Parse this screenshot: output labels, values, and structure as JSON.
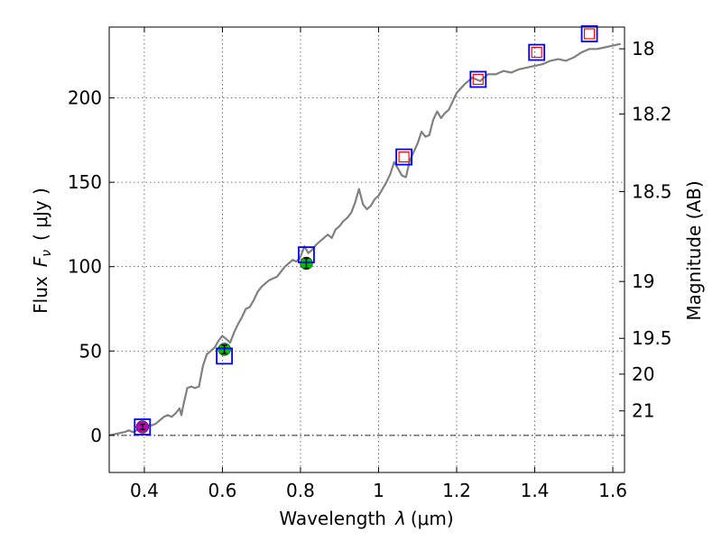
{
  "chart_data": {
    "type": "line",
    "xlabel_prefix": "Wavelength",
    "xlabel_symbol": "λ",
    "xlabel_unit": "(μm)",
    "ylabel_prefix": "Flux",
    "ylabel_symbol": "F",
    "ylabel_sub": "ν",
    "ylabel_unit": "( μJy )",
    "y2label": "Magnitude (AB)",
    "xlim": [
      0.31,
      1.63
    ],
    "ylim": [
      -22,
      242
    ],
    "x_ticks": [
      0.4,
      0.6,
      0.8,
      1.0,
      1.2,
      1.4,
      1.6
    ],
    "x_tick_labels": [
      "0.4",
      "0.6",
      "0.8",
      "1",
      "1.2",
      "1.4",
      "1.6"
    ],
    "y_ticks": [
      0,
      50,
      100,
      150,
      200
    ],
    "y_tick_labels": [
      "0",
      "50",
      "100",
      "150",
      "200"
    ],
    "mag_ticks": [
      {
        "label": "18",
        "flux": 229.1
      },
      {
        "label": "18.2",
        "flux": 190.5
      },
      {
        "label": "18.5",
        "flux": 144.5
      },
      {
        "label": "19",
        "flux": 91.2
      },
      {
        "label": "19.5",
        "flux": 57.5
      },
      {
        "label": "20",
        "flux": 36.3
      },
      {
        "label": "21",
        "flux": 14.5
      }
    ],
    "zero_line": 0,
    "grid": true,
    "series": [
      {
        "name": "model-spectrum",
        "color": "#808080",
        "x": [
          0.31,
          0.33,
          0.35,
          0.36,
          0.37,
          0.38,
          0.39,
          0.4,
          0.41,
          0.42,
          0.43,
          0.44,
          0.45,
          0.46,
          0.47,
          0.48,
          0.49,
          0.495,
          0.5,
          0.51,
          0.52,
          0.53,
          0.54,
          0.55,
          0.56,
          0.57,
          0.58,
          0.59,
          0.6,
          0.61,
          0.62,
          0.63,
          0.64,
          0.65,
          0.66,
          0.67,
          0.68,
          0.69,
          0.7,
          0.71,
          0.72,
          0.73,
          0.74,
          0.75,
          0.76,
          0.77,
          0.78,
          0.79,
          0.8,
          0.81,
          0.82,
          0.83,
          0.84,
          0.85,
          0.86,
          0.87,
          0.88,
          0.89,
          0.9,
          0.91,
          0.92,
          0.93,
          0.94,
          0.95,
          0.96,
          0.97,
          0.98,
          0.99,
          1.0,
          1.01,
          1.02,
          1.03,
          1.04,
          1.05,
          1.06,
          1.07,
          1.08,
          1.09,
          1.1,
          1.11,
          1.12,
          1.13,
          1.14,
          1.15,
          1.16,
          1.17,
          1.18,
          1.19,
          1.2,
          1.22,
          1.24,
          1.26,
          1.28,
          1.3,
          1.32,
          1.34,
          1.36,
          1.38,
          1.4,
          1.42,
          1.44,
          1.46,
          1.48,
          1.5,
          1.52,
          1.54,
          1.56,
          1.58,
          1.6,
          1.62
        ],
        "y": [
          0,
          1,
          2,
          3,
          2,
          3,
          4,
          5,
          6,
          6,
          7,
          9,
          11,
          12,
          11,
          13,
          16,
          12,
          18,
          28,
          29,
          28,
          29,
          41,
          48,
          50,
          52,
          56,
          59,
          57,
          55,
          61,
          66,
          70,
          75,
          76,
          80,
          85,
          88,
          90,
          92,
          93,
          94,
          97,
          100,
          102,
          104,
          103,
          106,
          112,
          108,
          110,
          113,
          115,
          117,
          119,
          117,
          122,
          124,
          127,
          129,
          132,
          138,
          146,
          137,
          134,
          136,
          140,
          142,
          146,
          150,
          155,
          162,
          158,
          154,
          153,
          163,
          168,
          173,
          180,
          177,
          178,
          187,
          192,
          188,
          191,
          193,
          198,
          203,
          208,
          212,
          210,
          214,
          214,
          216,
          215,
          217,
          218,
          219,
          220,
          222,
          223,
          222,
          224,
          227,
          229,
          229,
          230,
          231,
          232
        ]
      }
    ],
    "points": [
      {
        "name": "violet-filter",
        "x": 0.395,
        "y": 5,
        "err": 1.5,
        "color": "#bf00bf"
      },
      {
        "name": "green-filter-1",
        "x": 0.605,
        "y": 51,
        "err": 2.5,
        "color": "#00bf00"
      },
      {
        "name": "green-filter-2",
        "x": 0.815,
        "y": 102,
        "err": 3,
        "color": "#00bf00"
      }
    ],
    "model_boxes": [
      {
        "x": 0.395,
        "y": 5
      },
      {
        "x": 0.605,
        "y": 47
      },
      {
        "x": 0.815,
        "y": 107
      },
      {
        "x": 1.065,
        "y": 165
      },
      {
        "x": 1.255,
        "y": 211
      },
      {
        "x": 1.405,
        "y": 227
      },
      {
        "x": 1.54,
        "y": 238
      }
    ],
    "model_box_color": "#0000ff",
    "upper_boxes": [
      {
        "x": 1.065,
        "y": 165
      },
      {
        "x": 1.255,
        "y": 211
      },
      {
        "x": 1.405,
        "y": 227
      },
      {
        "x": 1.54,
        "y": 238
      }
    ],
    "upper_box_color": "#ff0000"
  }
}
